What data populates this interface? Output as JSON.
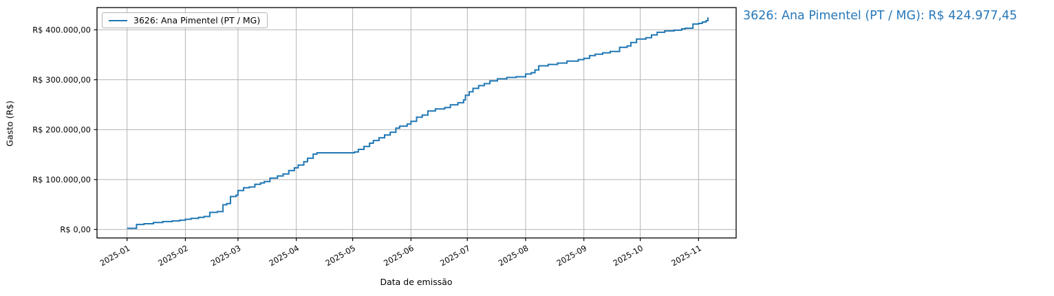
{
  "figure": {
    "legend_label": "3626: Ana Pimentel (PT / MG)",
    "annotation": "3626: Ana Pimentel (PT / MG): R$ 424.977,45",
    "x_axis_label": "Data de emissão",
    "y_axis_label": "Gasto (R$)"
  },
  "colors": {
    "line": "#1f77b4",
    "annotation_text": "#2878b9",
    "grid": "#b4b4b4",
    "spine": "#000000"
  },
  "chart_data": {
    "type": "line",
    "step": "post",
    "title": "",
    "xlabel": "Data de emissão",
    "ylabel": "Gasto (R$)",
    "legend_position": "upper left",
    "grid": true,
    "xlim": [
      "2024-12-16",
      "2025-11-21"
    ],
    "ylim": [
      -17000,
      444500
    ],
    "x_tick_dates": [
      "2025-01-01",
      "2025-02-01",
      "2025-03-01",
      "2025-04-01",
      "2025-05-01",
      "2025-06-01",
      "2025-07-01",
      "2025-08-01",
      "2025-09-01",
      "2025-10-01",
      "2025-11-01"
    ],
    "x_tick_labels": [
      "2025-01",
      "2025-02",
      "2025-03",
      "2025-04",
      "2025-05",
      "2025-06",
      "2025-07",
      "2025-08",
      "2025-09",
      "2025-10",
      "2025-11"
    ],
    "y_ticks": [
      0,
      100000,
      200000,
      300000,
      400000
    ],
    "y_tick_labels": [
      "R$ 0,00",
      "R$ 100.000,00",
      "R$ 200.000,00",
      "R$ 300.000,00",
      "R$ 400.000,00"
    ],
    "final_value_label": "R$ 424.977,45",
    "series": [
      {
        "name": "3626: Ana Pimentel (PT / MG)",
        "color": "#1f77b4",
        "points": [
          [
            "2025-01-01",
            2500
          ],
          [
            "2025-01-06",
            10000
          ],
          [
            "2025-01-10",
            11500
          ],
          [
            "2025-01-15",
            14000
          ],
          [
            "2025-01-20",
            15800
          ],
          [
            "2025-01-25",
            17200
          ],
          [
            "2025-01-29",
            18600
          ],
          [
            "2025-02-01",
            20500
          ],
          [
            "2025-02-04",
            22300
          ],
          [
            "2025-02-08",
            24200
          ],
          [
            "2025-02-11",
            26000
          ],
          [
            "2025-02-14",
            34300
          ],
          [
            "2025-02-18",
            35800
          ],
          [
            "2025-02-21",
            49500
          ],
          [
            "2025-02-23",
            52000
          ],
          [
            "2025-02-25",
            66000
          ],
          [
            "2025-02-28",
            68800
          ],
          [
            "2025-03-01",
            78200
          ],
          [
            "2025-03-04",
            83700
          ],
          [
            "2025-03-07",
            85200
          ],
          [
            "2025-03-10",
            90500
          ],
          [
            "2025-03-13",
            93300
          ],
          [
            "2025-03-15",
            96000
          ],
          [
            "2025-03-18",
            102900
          ],
          [
            "2025-03-22",
            107200
          ],
          [
            "2025-03-25",
            111100
          ],
          [
            "2025-03-28",
            118000
          ],
          [
            "2025-03-31",
            123500
          ],
          [
            "2025-04-02",
            129000
          ],
          [
            "2025-04-05",
            135800
          ],
          [
            "2025-04-07",
            142700
          ],
          [
            "2025-04-10",
            150900
          ],
          [
            "2025-04-12",
            153600
          ],
          [
            "2025-05-02",
            155200
          ],
          [
            "2025-05-04",
            160500
          ],
          [
            "2025-05-07",
            166200
          ],
          [
            "2025-05-10",
            172800
          ],
          [
            "2025-05-12",
            178300
          ],
          [
            "2025-05-15",
            183800
          ],
          [
            "2025-05-18",
            189300
          ],
          [
            "2025-05-21",
            194800
          ],
          [
            "2025-05-24",
            203000
          ],
          [
            "2025-05-26",
            207100
          ],
          [
            "2025-05-30",
            211200
          ],
          [
            "2025-06-01",
            216700
          ],
          [
            "2025-06-04",
            225000
          ],
          [
            "2025-06-07",
            229100
          ],
          [
            "2025-06-10",
            237300
          ],
          [
            "2025-06-14",
            241400
          ],
          [
            "2025-06-19",
            244200
          ],
          [
            "2025-06-22",
            249700
          ],
          [
            "2025-06-26",
            253800
          ],
          [
            "2025-06-29",
            259300
          ],
          [
            "2025-06-30",
            268900
          ],
          [
            "2025-07-02",
            275700
          ],
          [
            "2025-07-04",
            282600
          ],
          [
            "2025-07-07",
            288100
          ],
          [
            "2025-07-10",
            292200
          ],
          [
            "2025-07-13",
            297700
          ],
          [
            "2025-07-17",
            301800
          ],
          [
            "2025-07-22",
            304500
          ],
          [
            "2025-07-27",
            305900
          ],
          [
            "2025-08-01",
            311400
          ],
          [
            "2025-08-04",
            314100
          ],
          [
            "2025-08-06",
            319600
          ],
          [
            "2025-08-08",
            327800
          ],
          [
            "2025-08-13",
            330600
          ],
          [
            "2025-08-18",
            333300
          ],
          [
            "2025-08-23",
            337400
          ],
          [
            "2025-08-29",
            340200
          ],
          [
            "2025-09-01",
            342900
          ],
          [
            "2025-09-04",
            348400
          ],
          [
            "2025-09-07",
            351200
          ],
          [
            "2025-09-11",
            353900
          ],
          [
            "2025-09-15",
            356700
          ],
          [
            "2025-09-20",
            364900
          ],
          [
            "2025-09-24",
            367600
          ],
          [
            "2025-09-26",
            374500
          ],
          [
            "2025-09-29",
            381300
          ],
          [
            "2025-10-04",
            384100
          ],
          [
            "2025-10-07",
            389600
          ],
          [
            "2025-10-10",
            395000
          ],
          [
            "2025-10-14",
            397800
          ],
          [
            "2025-10-19",
            399100
          ],
          [
            "2025-10-23",
            401900
          ],
          [
            "2025-10-25",
            403200
          ],
          [
            "2025-10-29",
            411500
          ],
          [
            "2025-11-01",
            412800
          ],
          [
            "2025-11-03",
            415600
          ],
          [
            "2025-11-05",
            418300
          ],
          [
            "2025-11-06",
            424977.45
          ]
        ]
      }
    ]
  }
}
